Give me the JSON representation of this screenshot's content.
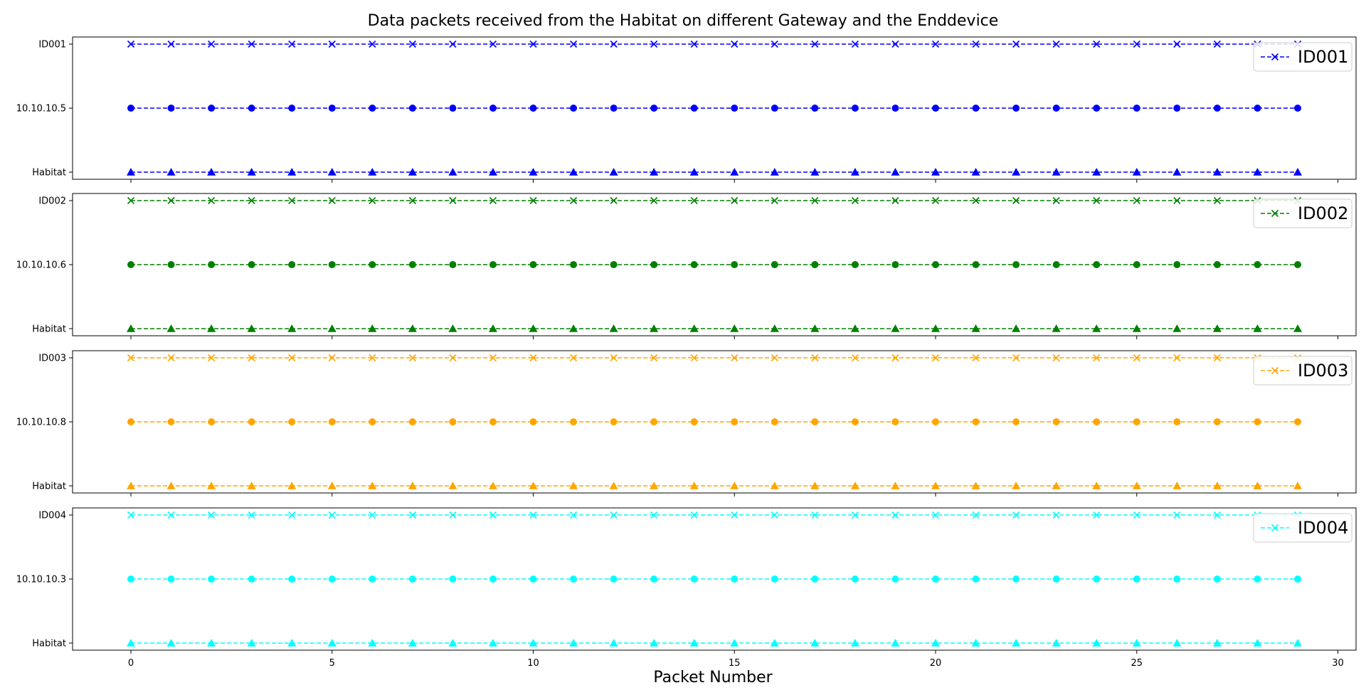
{
  "chart_data": {
    "type": "line",
    "title": "Data packets received from the Habitat on different Gateway and the Enddevice",
    "xlabel": "Packet Number",
    "xlim": [
      -1.45,
      30.45
    ],
    "xticks": [
      0,
      5,
      10,
      15,
      20,
      25,
      30
    ],
    "x": [
      0,
      1,
      2,
      3,
      4,
      5,
      6,
      7,
      8,
      9,
      10,
      11,
      12,
      13,
      14,
      15,
      16,
      17,
      18,
      19,
      20,
      21,
      22,
      23,
      24,
      25,
      26,
      27,
      28,
      29
    ],
    "grid": false,
    "legend_placement": "top-right",
    "subplots": [
      {
        "color": "#0000ff",
        "legend": "ID001",
        "categories": [
          "Habitat",
          "10.10.10.5",
          "ID001"
        ],
        "series": [
          {
            "level": "ID001",
            "marker": "x",
            "linestyle": "dashed"
          },
          {
            "level": "10.10.10.5",
            "marker": "o",
            "linestyle": "dashed"
          },
          {
            "level": "Habitat",
            "marker": "^",
            "linestyle": "dashed"
          }
        ]
      },
      {
        "color": "#008000",
        "legend": "ID002",
        "categories": [
          "Habitat",
          "10.10.10.6",
          "ID002"
        ],
        "series": [
          {
            "level": "ID002",
            "marker": "x",
            "linestyle": "dashed"
          },
          {
            "level": "10.10.10.6",
            "marker": "o",
            "linestyle": "dashed"
          },
          {
            "level": "Habitat",
            "marker": "^",
            "linestyle": "dashed"
          }
        ]
      },
      {
        "color": "#ffa500",
        "legend": "ID003",
        "categories": [
          "Habitat",
          "10.10.10.8",
          "ID003"
        ],
        "series": [
          {
            "level": "ID003",
            "marker": "x",
            "linestyle": "dashed"
          },
          {
            "level": "10.10.10.8",
            "marker": "o",
            "linestyle": "dashed"
          },
          {
            "level": "Habitat",
            "marker": "^",
            "linestyle": "dashed"
          }
        ]
      },
      {
        "color": "#00ffff",
        "legend": "ID004",
        "categories": [
          "Habitat",
          "10.10.10.3",
          "ID004"
        ],
        "series": [
          {
            "level": "ID004",
            "marker": "x",
            "linestyle": "dashed"
          },
          {
            "level": "10.10.10.3",
            "marker": "o",
            "linestyle": "dashed"
          },
          {
            "level": "Habitat",
            "marker": "^",
            "linestyle": "dashed"
          }
        ]
      }
    ]
  }
}
